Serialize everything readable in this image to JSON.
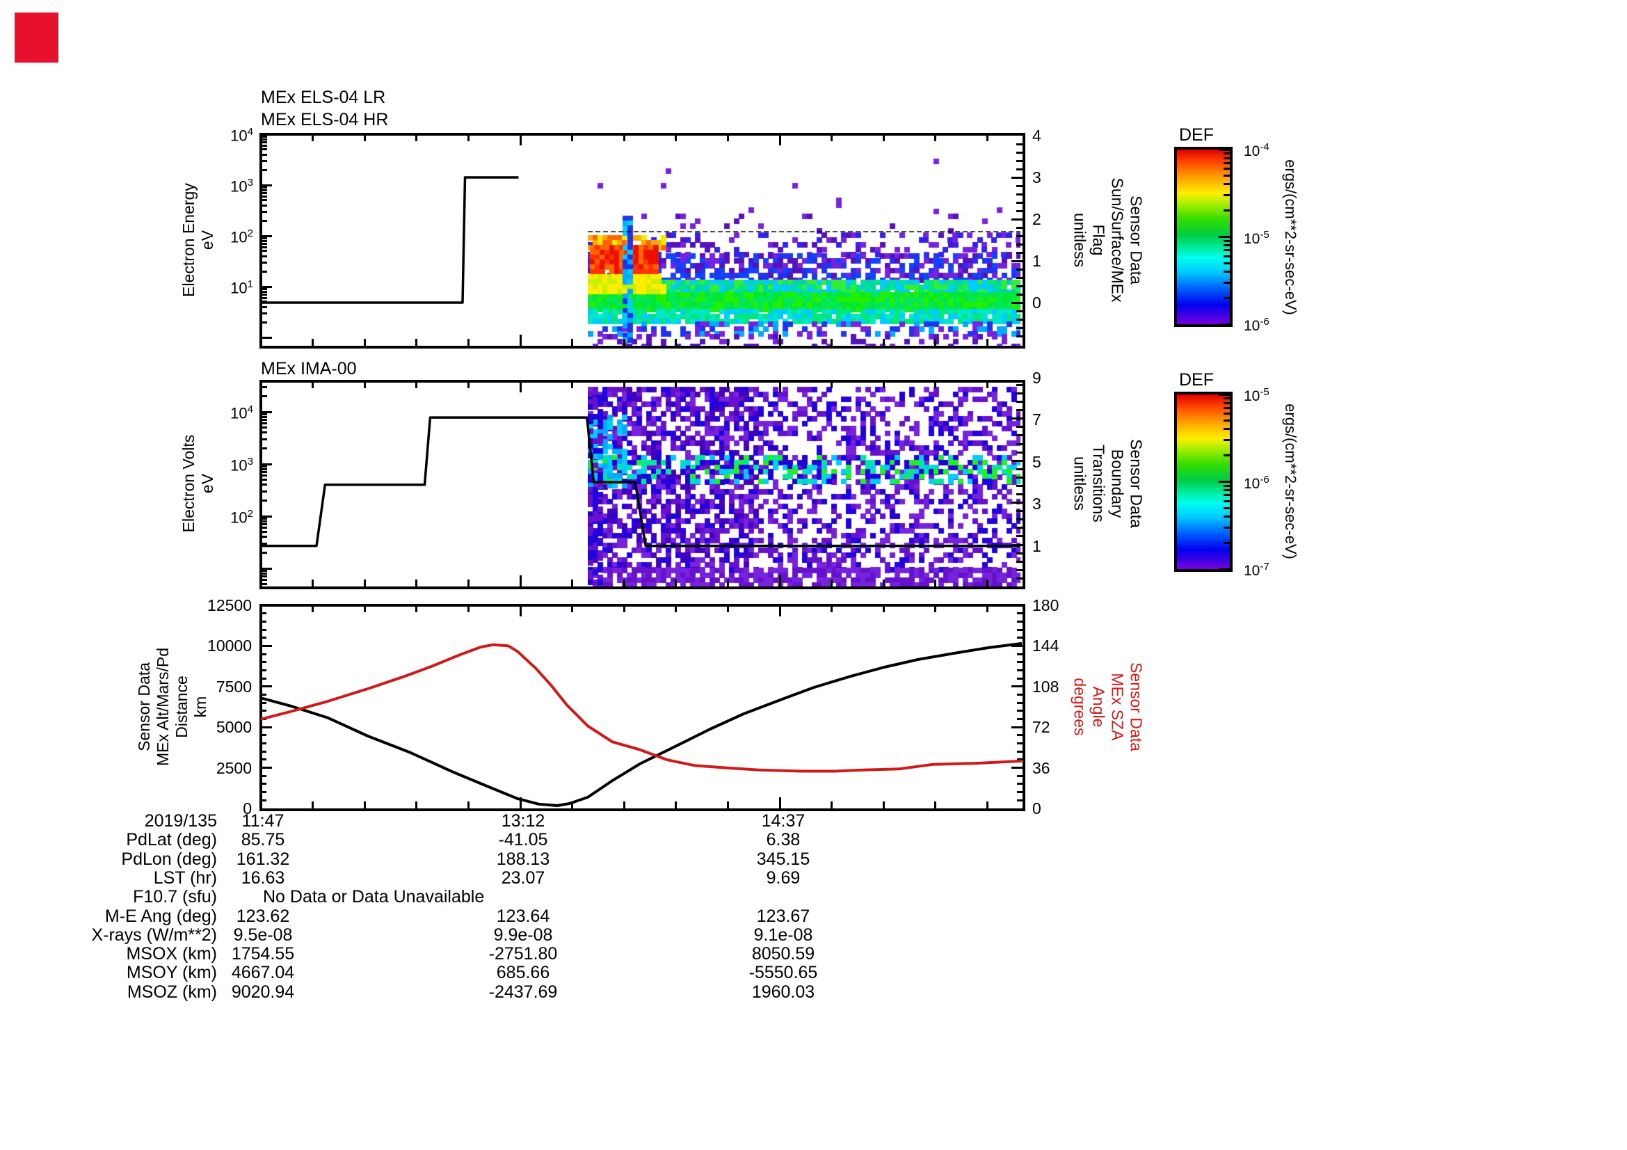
{
  "annotations": {
    "red_marker_color": "#e8112d"
  },
  "panels": [
    {
      "id": "els",
      "titles": [
        "MEx ELS-04 LR",
        "MEx ELS-04 HR"
      ],
      "y_left": {
        "label": "Electron Energy\neV",
        "ticks": [
          "10^4",
          "10^3",
          "10^2",
          "10^1"
        ]
      },
      "y_right": {
        "label": "Sensor Data\nSun/Surface/MEx\nFlag\nunitless",
        "ticks": [
          "4",
          "3",
          "2",
          "1",
          "0"
        ]
      }
    },
    {
      "id": "ima",
      "titles": [
        "MEx IMA-00"
      ],
      "y_left": {
        "label": "Electron Volts\neV",
        "ticks": [
          "10^4",
          "10^3",
          "10^2"
        ]
      },
      "y_right": {
        "label": "Sensor Data\nBoundary\nTransitions\nunitless",
        "ticks": [
          "9",
          "7",
          "5",
          "3",
          "1"
        ]
      }
    },
    {
      "id": "traj",
      "titles": [],
      "y_left": {
        "label": "Sensor Data\nMEx Alt/Mars/Pd\nDistance\nkm",
        "ticks": [
          "12500",
          "10000",
          "7500",
          "5000",
          "2500",
          "0"
        ]
      },
      "y_right": {
        "label": "Sensor Data\nMEx SZA\nAngle\ndegrees",
        "ticks": [
          "180",
          "144",
          "108",
          "72",
          "36",
          "0"
        ],
        "label_color": "#cf1a1a"
      }
    }
  ],
  "colorbars": [
    {
      "title": "DEF",
      "ticks": [
        "10^-4",
        "10^-5",
        "10^-6"
      ],
      "unit": "ergs/(cm**2-sr-sec-eV)"
    },
    {
      "title": "DEF",
      "ticks": [
        "10^-5",
        "10^-6",
        "10^-7"
      ],
      "unit": "ergs/(cm**2-sr-sec-eV)"
    }
  ],
  "x_axis": {
    "date": "2019/135",
    "tick_labels": [
      "11:47",
      "13:12",
      "14:37"
    ]
  },
  "table": {
    "rows": [
      {
        "label": "2019/135",
        "values": [
          "11:47",
          "13:12",
          "14:37"
        ]
      },
      {
        "label": "PdLat (deg)",
        "values": [
          "85.75",
          "-41.05",
          "6.38"
        ]
      },
      {
        "label": "PdLon (deg)",
        "values": [
          "161.32",
          "188.13",
          "345.15"
        ]
      },
      {
        "label": "LST (hr)",
        "values": [
          "16.63",
          "23.07",
          "9.69"
        ]
      },
      {
        "label": "F10.7 (sfu)",
        "values": [],
        "note": "No Data or Data Unavailable"
      },
      {
        "label": "M-E Ang (deg)",
        "values": [
          "123.62",
          "123.64",
          "123.67"
        ]
      },
      {
        "label": "X-rays (W/m**2)",
        "values": [
          "9.5e-08",
          "9.9e-08",
          "9.1e-08"
        ]
      },
      {
        "label": "MSOX (km)",
        "values": [
          "1754.55",
          "-2751.80",
          "8050.59"
        ]
      },
      {
        "label": "MSOY (km)",
        "values": [
          "4667.04",
          "685.66",
          "-5550.65"
        ]
      },
      {
        "label": "MSOZ (km)",
        "values": [
          "9020.94",
          "-2437.69",
          "1960.03"
        ]
      }
    ]
  },
  "chart_data": [
    {
      "type": "heatmap",
      "title": "MEx ELS-04 LR / MEx ELS-04 HR",
      "ylabel": "Electron Energy (eV)",
      "y_scale": "log",
      "y_range_eV": [
        1,
        10000
      ],
      "x_range_minutes_from_1147": [
        0,
        249
      ],
      "color_scale": {
        "label": "DEF",
        "unit": "ergs/(cm**2-sr-sec-eV)",
        "range": [
          "1e-6",
          "1e-4"
        ]
      },
      "flag_series": {
        "name": "Sun/Surface/MEx Flag",
        "range": [
          0,
          4
        ],
        "points_t_flag": [
          [
            0,
            0
          ],
          [
            66,
            0
          ],
          [
            66.8,
            3
          ],
          [
            84.3,
            3
          ]
        ]
      },
      "flag_faint_segment": {
        "flag": 1.7,
        "t": [
          107,
          248.5
        ]
      },
      "spectrogram_bands": [
        {
          "x": [
            845,
            1467
          ],
          "y": [
            207,
            300
          ],
          "d": 0.007,
          "c": [
            "#7722dd"
          ]
        },
        {
          "x": [
            845,
            1467
          ],
          "y": [
            300,
            334
          ],
          "d": 0.05,
          "c": [
            "#7722dd",
            "#5511bb"
          ]
        },
        {
          "x": [
            845,
            1467
          ],
          "y": [
            334,
            364
          ],
          "d": 0.22,
          "c": [
            "#7722dd",
            "#3322ee",
            "#5511bb"
          ]
        },
        {
          "x": [
            1320,
            1467
          ],
          "y": [
            334,
            364
          ],
          "d": 0.18,
          "c": [
            "#3322ee",
            "#7722dd"
          ]
        },
        {
          "x": [
            845,
            1467
          ],
          "y": [
            364,
            402
          ],
          "d": 0.6,
          "c": [
            "#2233ee",
            "#7722dd",
            "#1144ff",
            "#5511bb"
          ]
        },
        {
          "x": [
            845,
            1467
          ],
          "y": [
            402,
            420
          ],
          "d": 0.97,
          "c": [
            "#00d4aa",
            "#00e87a",
            "#33ee33",
            "#00ccff"
          ]
        },
        {
          "x": [
            845,
            1467
          ],
          "y": [
            420,
            444
          ],
          "d": 1.0,
          "c": [
            "#00e833",
            "#22f000",
            "#00e85a"
          ]
        },
        {
          "x": [
            845,
            1467
          ],
          "y": [
            444,
            462
          ],
          "d": 0.9,
          "c": [
            "#00e8c8",
            "#00ccff",
            "#00e87a"
          ]
        },
        {
          "x": [
            845,
            1467
          ],
          "y": [
            462,
            480
          ],
          "d": 0.45,
          "c": [
            "#2233ee",
            "#7722dd",
            "#00aaff"
          ]
        },
        {
          "x": [
            845,
            1467
          ],
          "y": [
            480,
            496
          ],
          "d": 0.2,
          "c": [
            "#7722dd",
            "#5511bb"
          ]
        },
        {
          "x": [
            845,
            952
          ],
          "y": [
            338,
            358
          ],
          "d": 0.8,
          "c": [
            "#ffaa00",
            "#ff6600",
            "#eeee00"
          ]
        },
        {
          "x": [
            848,
            944
          ],
          "y": [
            352,
            398
          ],
          "d": 0.95,
          "c": [
            "#ee1100",
            "#ff3300",
            "#ff6600"
          ]
        },
        {
          "x": [
            845,
            952
          ],
          "y": [
            394,
            420
          ],
          "d": 0.95,
          "c": [
            "#ffee00",
            "#ccee00"
          ]
        },
        {
          "x": [
            895,
            908
          ],
          "y": [
            310,
            490
          ],
          "d": 0.75,
          "c": [
            "#2233ee",
            "#00aaff",
            "#00ccff"
          ]
        }
      ]
    },
    {
      "type": "heatmap",
      "title": "MEx IMA-00",
      "ylabel": "Electron Volts (eV)",
      "y_scale": "log",
      "color_scale": {
        "label": "DEF",
        "unit": "ergs/(cm**2-sr-sec-eV)",
        "range": [
          "1e-7",
          "1e-5"
        ]
      },
      "energy_sweep_series": {
        "name": "scan level (eV)",
        "points_t_eV": [
          [
            0,
            27
          ],
          [
            18.2,
            27
          ],
          [
            21,
            400
          ],
          [
            53.6,
            400
          ],
          [
            55.4,
            7800
          ],
          [
            106.7,
            7800
          ],
          [
            108.9,
            450
          ],
          [
            122.5,
            450
          ],
          [
            125.9,
            27
          ],
          [
            248.5,
            27
          ]
        ]
      },
      "spectrogram_bands": [
        {
          "x": [
            845,
            1090
          ],
          "y": [
            556,
            816
          ],
          "d": 0.62,
          "c": [
            "#6611cc",
            "#2200dd",
            "#7722dd",
            "#4400bb"
          ]
        },
        {
          "x": [
            1090,
            1467
          ],
          "y": [
            556,
            816
          ],
          "d": 0.38,
          "c": [
            "#6611cc",
            "#7722dd",
            "#2200dd"
          ]
        },
        {
          "x": [
            845,
            1467
          ],
          "y": [
            816,
            843
          ],
          "d": 0.75,
          "c": [
            "#6611cc",
            "#7722dd"
          ]
        },
        {
          "x": [
            845,
            1467
          ],
          "y": [
            654,
            669
          ],
          "d": 0.5,
          "c": [
            "#00ccff",
            "#00e8a0",
            "#22ee22",
            "#2200dd"
          ]
        },
        {
          "x": [
            845,
            1467
          ],
          "y": [
            674,
            690
          ],
          "d": 0.5,
          "c": [
            "#00ccff",
            "#00e8a0",
            "#22ee22",
            "#2200dd"
          ]
        },
        {
          "x": [
            845,
            900
          ],
          "y": [
            596,
            700
          ],
          "d": 0.45,
          "c": [
            "#00ccff",
            "#00aaff"
          ]
        },
        {
          "x": [
            845,
            862
          ],
          "y": [
            560,
            840
          ],
          "d": 0.6,
          "c": [
            "#6611cc",
            "#2200dd"
          ]
        }
      ]
    },
    {
      "type": "line",
      "x_tick_labels": [
        "11:47",
        "13:12",
        "14:37"
      ],
      "y_left": {
        "label": "MEx Alt/Mars/Pd Distance (km)",
        "range": [
          0,
          12500
        ]
      },
      "y_right": {
        "label": "MEx SZA Angle (degrees)",
        "range": [
          0,
          180
        ]
      },
      "series": [
        {
          "name": "distance_km",
          "color": "#000000",
          "axis": "left",
          "points": [
            [
              0,
              6800
            ],
            [
              10,
              6290
            ],
            [
              22,
              5570
            ],
            [
              35,
              4450
            ],
            [
              49,
              3430
            ],
            [
              63,
              2230
            ],
            [
              74,
              1370
            ],
            [
              84,
              600
            ],
            [
              91,
              260
            ],
            [
              97,
              170
            ],
            [
              101,
              300
            ],
            [
              107,
              690
            ],
            [
              115,
              1710
            ],
            [
              124,
              2740
            ],
            [
              136,
              3850
            ],
            [
              147,
              4880
            ],
            [
              158,
              5820
            ],
            [
              170,
              6680
            ],
            [
              181,
              7450
            ],
            [
              193,
              8130
            ],
            [
              204,
              8690
            ],
            [
              215,
              9160
            ],
            [
              227,
              9550
            ],
            [
              238,
              9890
            ],
            [
              249,
              10150
            ]
          ]
        },
        {
          "name": "sza_deg",
          "color": "#cf1a1a",
          "axis": "right",
          "points": [
            [
              0,
              79
            ],
            [
              10,
              86
            ],
            [
              22,
              95
            ],
            [
              35,
              106
            ],
            [
              47,
              117
            ],
            [
              56,
              126
            ],
            [
              65,
              136
            ],
            [
              72,
              143
            ],
            [
              76,
              145
            ],
            [
              81,
              144
            ],
            [
              84,
              139
            ],
            [
              90,
              124
            ],
            [
              95,
              109
            ],
            [
              100,
              92
            ],
            [
              107,
              73
            ],
            [
              115,
              59
            ],
            [
              124,
              52
            ],
            [
              133,
              43
            ],
            [
              142,
              38
            ],
            [
              152,
              36
            ],
            [
              163,
              34
            ],
            [
              177,
              33
            ],
            [
              188,
              33
            ],
            [
              197,
              34
            ],
            [
              209,
              35
            ],
            [
              220,
              39
            ],
            [
              234,
              40
            ],
            [
              249,
              42
            ]
          ]
        }
      ]
    }
  ]
}
